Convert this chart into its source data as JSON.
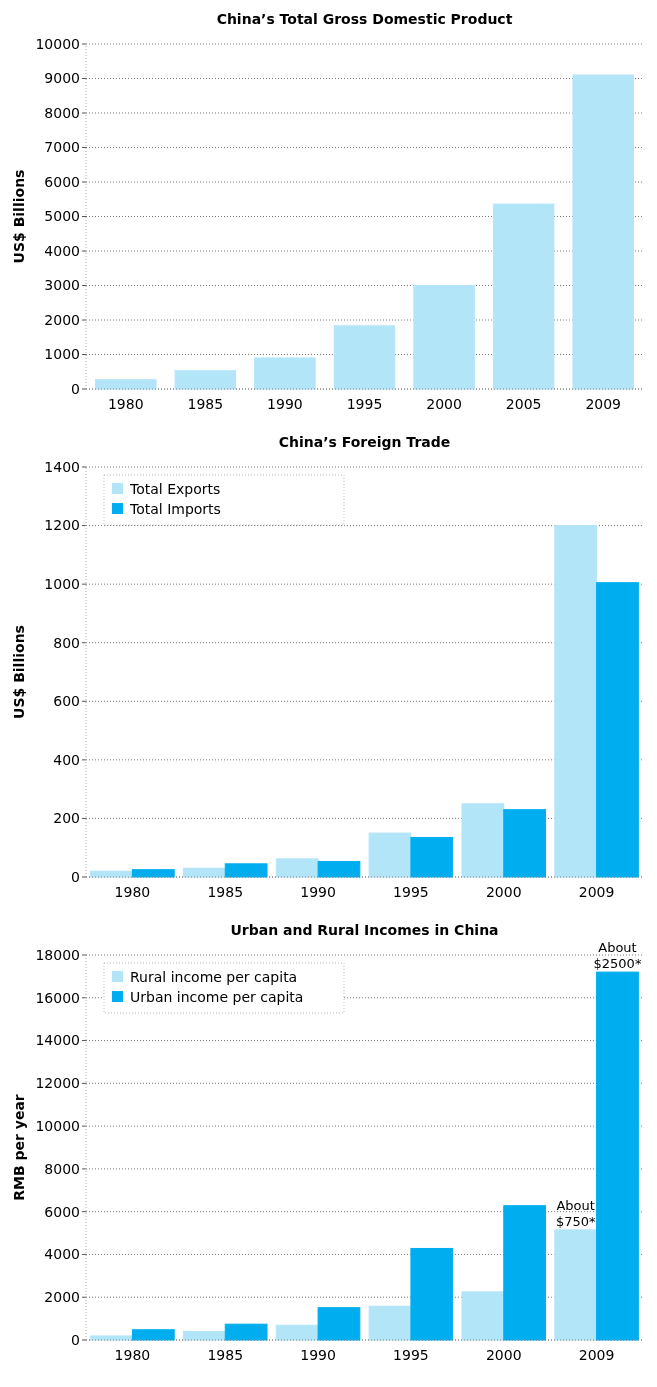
{
  "chart_data": [
    {
      "type": "bar",
      "title": "China’s Total Gross Domestic Product",
      "ylabel": "US$ Billions",
      "categories": [
        "1980",
        "1985",
        "1990",
        "1995",
        "2000",
        "2005",
        "2009"
      ],
      "series": [
        {
          "color": "#b3e5f8",
          "values": [
            270,
            530,
            900,
            1830,
            3000,
            5360,
            9100
          ]
        }
      ],
      "ylim": [
        0,
        10000
      ],
      "yticks": [
        0,
        1000,
        2000,
        3000,
        4000,
        5000,
        6000,
        7000,
        8000,
        9000,
        10000
      ],
      "grid": "y",
      "legend": false
    },
    {
      "type": "bar",
      "title": "China’s Foreign Trade",
      "ylabel": "US$ Billions",
      "categories": [
        "1980",
        "1985",
        "1990",
        "1995",
        "2000",
        "2009"
      ],
      "series": [
        {
          "name": "Total Exports",
          "color": "#b3e5f8",
          "values": [
            20,
            30,
            62,
            150,
            250,
            1200
          ]
        },
        {
          "name": "Total Imports",
          "color": "#00aeef",
          "values": [
            25,
            45,
            53,
            135,
            230,
            1005
          ]
        }
      ],
      "ylim": [
        0,
        1400
      ],
      "yticks": [
        0,
        200,
        400,
        600,
        800,
        1000,
        1200,
        1400
      ],
      "grid": "y",
      "legend": "top left"
    },
    {
      "type": "bar",
      "title": "Urban and Rural Incomes in China",
      "ylabel": "RMB per year",
      "categories": [
        "1980",
        "1985",
        "1990",
        "1995",
        "2000",
        "2009"
      ],
      "series": [
        {
          "name": "Rural income per capita",
          "color": "#b3e5f8",
          "values": [
            190,
            400,
            690,
            1580,
            2250,
            5150
          ]
        },
        {
          "name": "Urban income per capita",
          "color": "#00aeef",
          "values": [
            480,
            740,
            1510,
            4280,
            6280,
            17200
          ]
        }
      ],
      "ylim": [
        0,
        18000
      ],
      "yticks": [
        0,
        2000,
        4000,
        6000,
        8000,
        10000,
        12000,
        14000,
        16000,
        18000
      ],
      "grid": "y",
      "legend": "top left",
      "annotations": [
        {
          "text": "About\n$750*",
          "x": "2009",
          "y": 5150
        },
        {
          "text": "About\n$2500*",
          "x": "2009",
          "y": 17200
        }
      ]
    }
  ]
}
